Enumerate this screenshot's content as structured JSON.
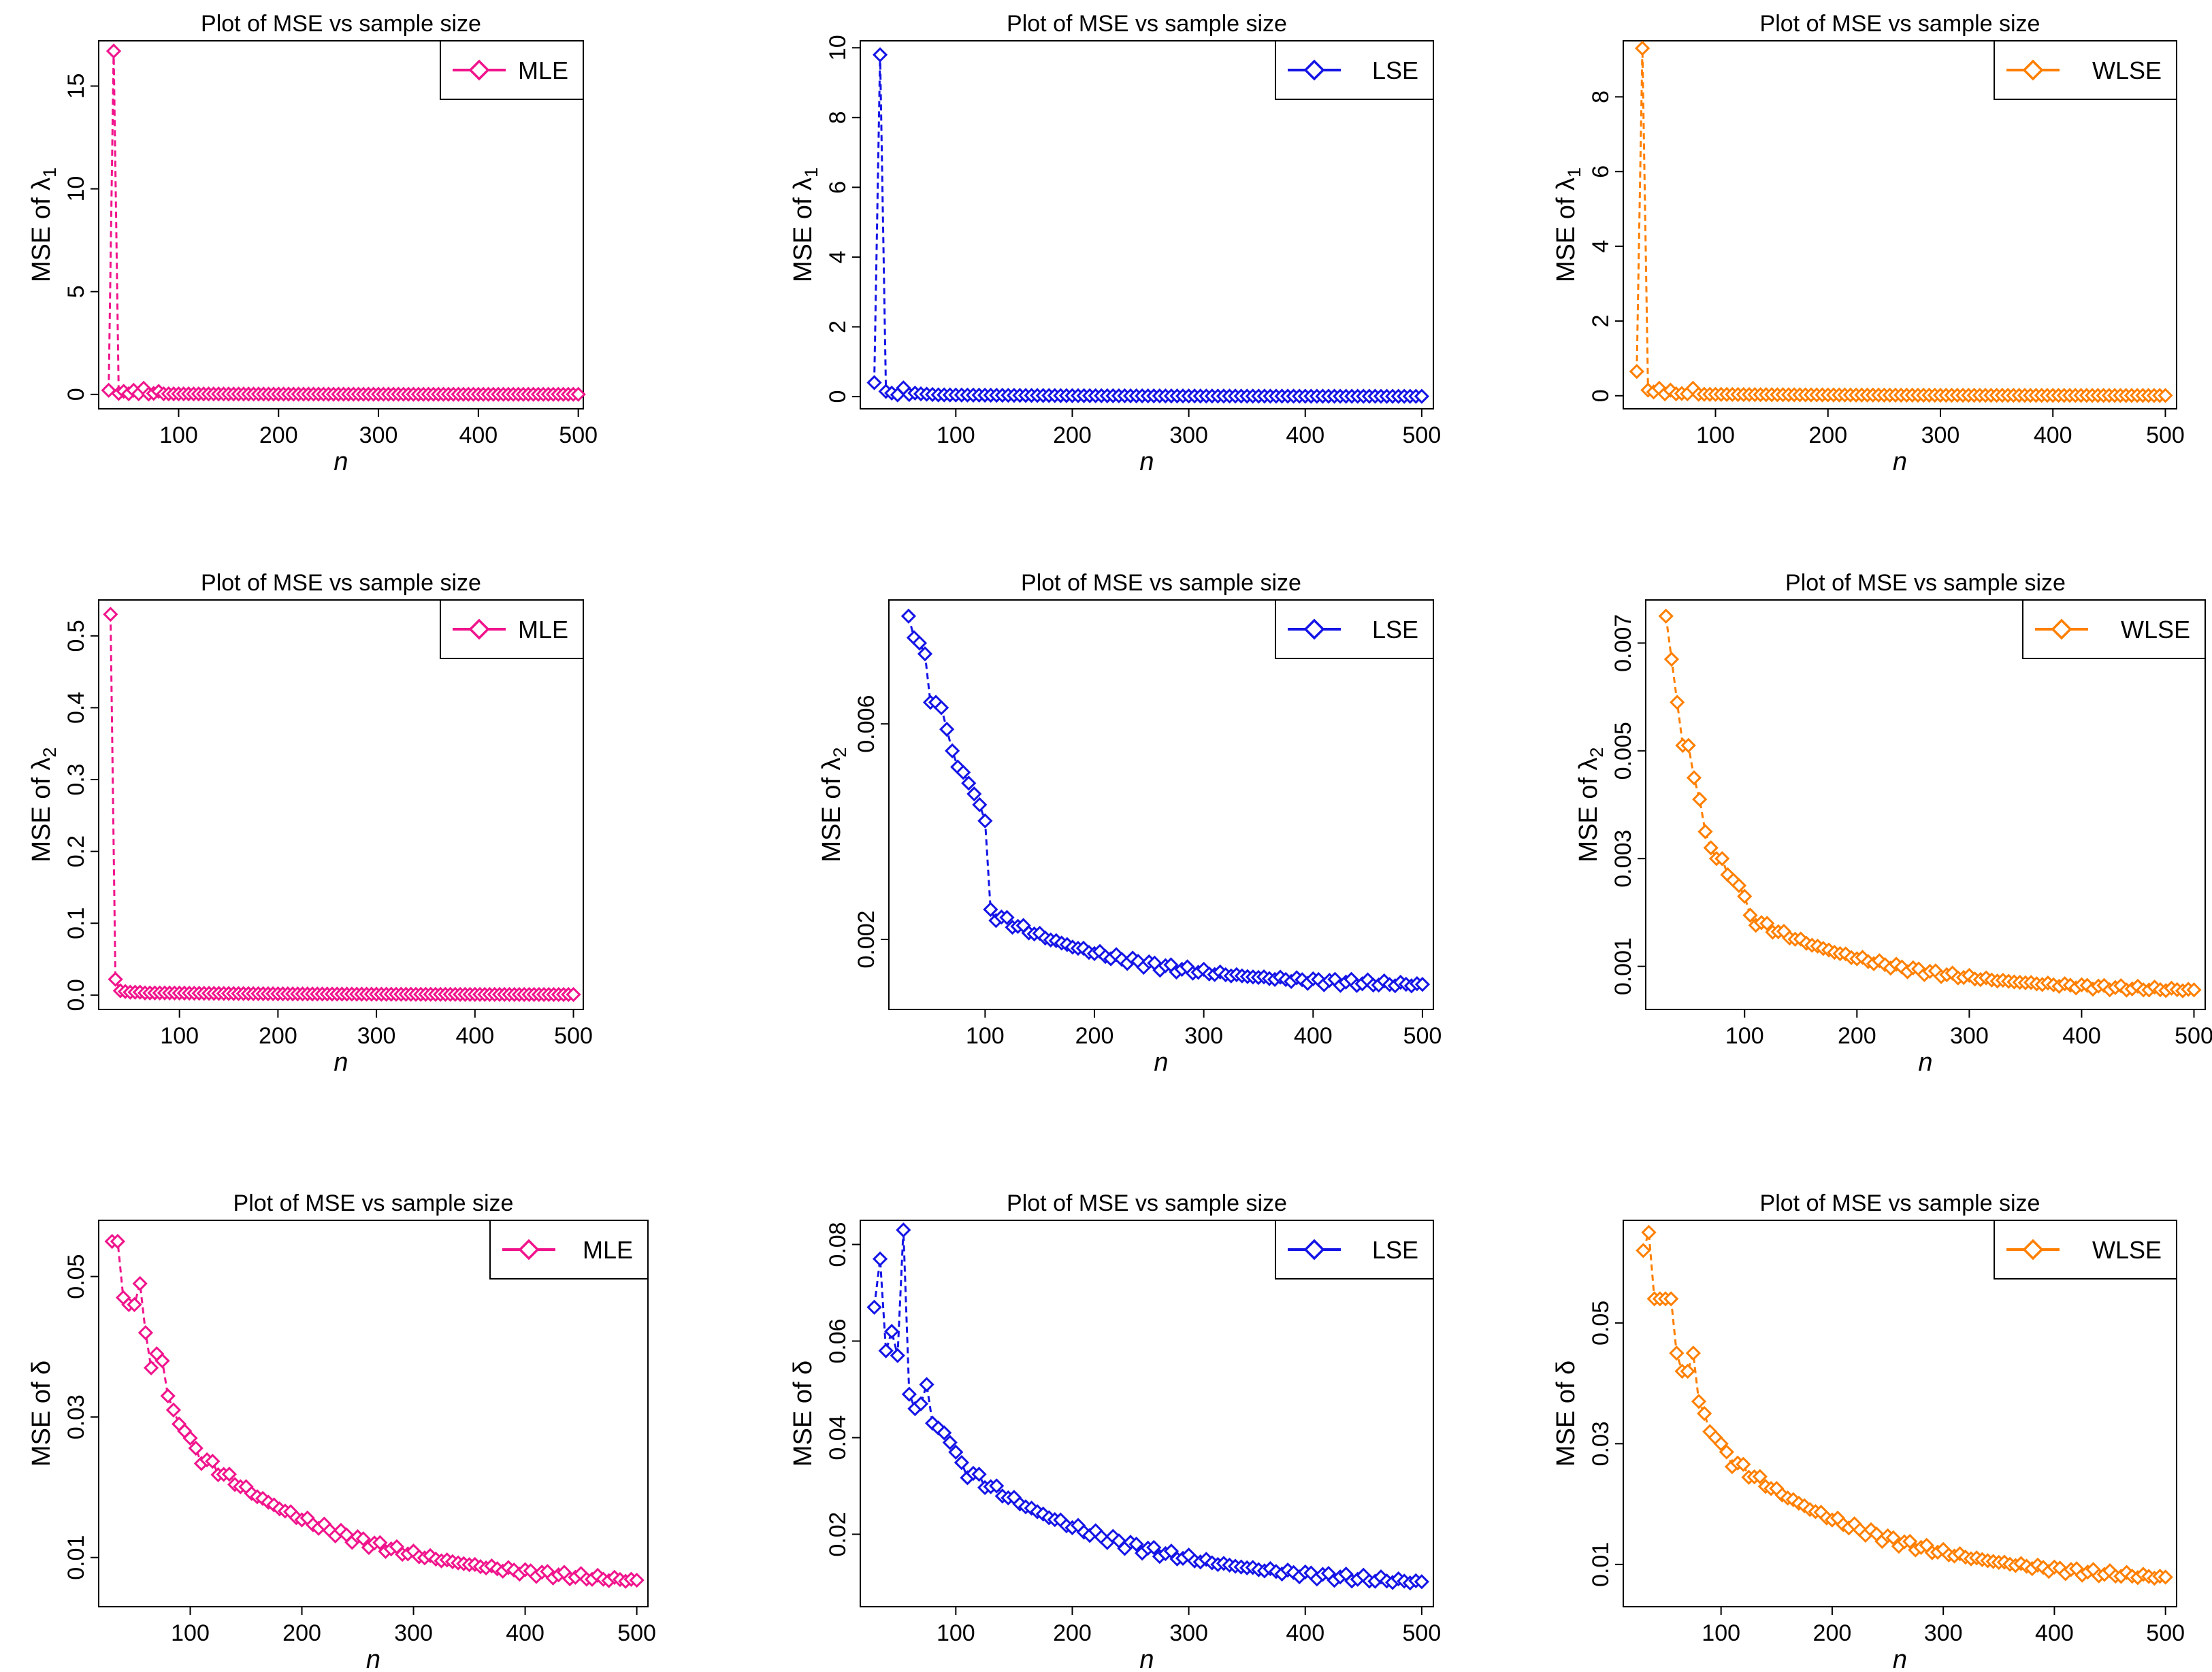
{
  "page_title": "Plot of MSE vs sample size",
  "colors": {
    "MLE": "#f0148c",
    "LSE": "#1414e6",
    "WLSE": "#ff7f00"
  },
  "chart_data": [
    {
      "type": "line",
      "title": "Plot of MSE vs sample size",
      "xlabel": "n",
      "ylabel_prefix": "MSE of ",
      "ylabel_sym": "λ",
      "ylabel_sub": "1",
      "legend": "MLE",
      "legend_position": "top-right",
      "color_key": "MLE",
      "xlim": [
        20,
        505
      ],
      "ylim": [
        -0.7,
        17.2
      ],
      "xticks": [
        100,
        200,
        300,
        400,
        500
      ],
      "xtick_labels": [
        "100",
        "200",
        "300",
        "400",
        "500"
      ],
      "yticks": [
        0,
        5,
        10,
        15
      ],
      "ytick_labels": [
        "0",
        "5",
        "10",
        "15"
      ],
      "x": [
        30,
        35,
        40,
        45,
        50,
        55,
        60,
        65,
        70,
        75,
        80
      ],
      "values": [
        0.2,
        16.7,
        0.05,
        0.15,
        0.03,
        0.2,
        0.03,
        0.3,
        0.02,
        0.05,
        0.15
      ],
      "tail_from": 85,
      "tail_to": 500,
      "tail_step": 5,
      "tail_start": 0.03,
      "tail_end": 0.003,
      "tail_decay": 0.006,
      "tail_noise": 0.0
    },
    {
      "type": "line",
      "title": "Plot of MSE vs sample size",
      "xlabel": "n",
      "ylabel_prefix": "MSE of ",
      "ylabel_sym": "λ",
      "ylabel_sub": "1",
      "legend": "LSE",
      "legend_position": "top-right",
      "color_key": "LSE",
      "xlim": [
        18,
        510
      ],
      "ylim": [
        -0.35,
        10.2
      ],
      "xticks": [
        100,
        200,
        300,
        400,
        500
      ],
      "xtick_labels": [
        "100",
        "200",
        "300",
        "400",
        "500"
      ],
      "yticks": [
        0,
        2,
        4,
        6,
        8,
        10
      ],
      "ytick_labels": [
        "0",
        "2",
        "4",
        "6",
        "8",
        "10"
      ],
      "x": [
        30,
        35,
        40,
        45,
        50,
        55,
        60,
        65,
        70,
        75,
        80
      ],
      "values": [
        0.4,
        9.8,
        0.15,
        0.1,
        0.05,
        0.25,
        0.06,
        0.1,
        0.08,
        0.07,
        0.06
      ],
      "tail_from": 85,
      "tail_to": 500,
      "tail_step": 5,
      "tail_start": 0.05,
      "tail_end": 0.005,
      "tail_decay": 0.006,
      "tail_noise": 0.0
    },
    {
      "type": "line",
      "title": "Plot of MSE vs sample size",
      "xlabel": "n",
      "ylabel_prefix": "MSE of ",
      "ylabel_sym": "λ",
      "ylabel_sub": "1",
      "legend": "WLSE",
      "legend_position": "top-right",
      "color_key": "WLSE",
      "xlim": [
        18,
        510
      ],
      "ylim": [
        -0.35,
        9.5
      ],
      "xticks": [
        100,
        200,
        300,
        400,
        500
      ],
      "xtick_labels": [
        "100",
        "200",
        "300",
        "400",
        "500"
      ],
      "yticks": [
        0,
        2,
        4,
        6,
        8
      ],
      "ytick_labels": [
        "0",
        "2",
        "4",
        "6",
        "8"
      ],
      "x": [
        30,
        35,
        40,
        45,
        50,
        55,
        60,
        65,
        70,
        75,
        80
      ],
      "values": [
        0.65,
        9.3,
        0.15,
        0.1,
        0.2,
        0.05,
        0.15,
        0.05,
        0.06,
        0.05,
        0.2
      ],
      "tail_from": 85,
      "tail_to": 500,
      "tail_step": 5,
      "tail_start": 0.04,
      "tail_end": 0.004,
      "tail_decay": 0.006,
      "tail_noise": 0.0
    },
    {
      "type": "line",
      "title": "Plot of MSE vs sample size",
      "xlabel": "n",
      "ylabel_prefix": "MSE of ",
      "ylabel_sym": "λ",
      "ylabel_sub": "2",
      "legend": "MLE",
      "legend_position": "top-right",
      "color_key": "MLE",
      "xlim": [
        18,
        510
      ],
      "ylim": [
        -0.02,
        0.55
      ],
      "xticks": [
        100,
        200,
        300,
        400,
        500
      ],
      "xtick_labels": [
        "100",
        "200",
        "300",
        "400",
        "500"
      ],
      "yticks": [
        0,
        0.1,
        0.2,
        0.3,
        0.4,
        0.5
      ],
      "ytick_labels": [
        "0.0",
        "0.1",
        "0.2",
        "0.3",
        "0.4",
        "0.5"
      ],
      "x": [
        30,
        35,
        40,
        45,
        50,
        55,
        60,
        65,
        70,
        75,
        80
      ],
      "values": [
        0.53,
        0.022,
        0.006,
        0.005,
        0.004,
        0.004,
        0.004,
        0.003,
        0.003,
        0.003,
        0.003
      ],
      "tail_from": 85,
      "tail_to": 500,
      "tail_step": 5,
      "tail_start": 0.003,
      "tail_end": 0.0006,
      "tail_decay": 0.006,
      "tail_noise": 0.0
    },
    {
      "type": "line",
      "title": "Plot of MSE vs sample size",
      "xlabel": "n",
      "ylabel_prefix": "MSE of ",
      "ylabel_sym": "λ",
      "ylabel_sub": "2",
      "legend": "LSE",
      "legend_position": "top-right",
      "color_key": "LSE",
      "xlim": [
        12,
        510
      ],
      "ylim": [
        0.0007,
        0.0083
      ],
      "xticks": [
        100,
        200,
        300,
        400,
        500
      ],
      "xtick_labels": [
        "100",
        "200",
        "300",
        "400",
        "500"
      ],
      "yticks": [
        0.002,
        0.006
      ],
      "ytick_labels": [
        "0.002",
        "0.006"
      ],
      "x": [
        30,
        35,
        40,
        45,
        50,
        55,
        60,
        65,
        70,
        75,
        80,
        85,
        90,
        95,
        100
      ],
      "values": [
        0.008,
        0.0076,
        0.0075,
        0.0073,
        0.0064,
        0.0064,
        0.0063,
        0.0059,
        0.0055,
        0.0052,
        0.0051,
        0.0049,
        0.0047,
        0.0045,
        0.0042
      ],
      "tail_from": 105,
      "tail_to": 500,
      "tail_step": 5,
      "tail_start": 0.0025,
      "tail_end": 0.0011,
      "tail_decay": 0.008,
      "tail_noise": 8e-05
    },
    {
      "type": "line",
      "title": "Plot of MSE vs sample size",
      "xlabel": "n",
      "ylabel_prefix": "MSE of ",
      "ylabel_sym": "λ",
      "ylabel_sub": "2",
      "legend": "WLSE",
      "legend_position": "top-right",
      "color_key": "WLSE",
      "xlim": [
        12,
        510
      ],
      "ylim": [
        0.0002,
        0.0078
      ],
      "xticks": [
        100,
        200,
        300,
        400,
        500
      ],
      "xtick_labels": [
        "100",
        "200",
        "300",
        "400",
        "500"
      ],
      "yticks": [
        0.001,
        0.003,
        0.005,
        0.007
      ],
      "ytick_labels": [
        "0.001",
        "0.003",
        "0.005",
        "0.007"
      ],
      "x": [
        30,
        35,
        40,
        45,
        50,
        55,
        60,
        65,
        70,
        75,
        80,
        85,
        90,
        95,
        100
      ],
      "values": [
        0.0075,
        0.0067,
        0.0059,
        0.0051,
        0.0051,
        0.0045,
        0.0041,
        0.0035,
        0.0032,
        0.003,
        0.003,
        0.0027,
        0.0026,
        0.0025,
        0.0023
      ],
      "tail_from": 105,
      "tail_to": 500,
      "tail_step": 5,
      "tail_start": 0.0019,
      "tail_end": 0.0005,
      "tail_decay": 0.008,
      "tail_noise": 7e-05
    },
    {
      "type": "line",
      "title": "Plot of MSE vs sample size",
      "xlabel": "n",
      "ylabel_prefix": "MSE of ",
      "ylabel_sym": "δ",
      "ylabel_sub": "",
      "legend": "MLE",
      "legend_position": "top-right",
      "color_key": "MLE",
      "xlim": [
        18,
        510
      ],
      "ylim": [
        0.003,
        0.058
      ],
      "xticks": [
        100,
        200,
        300,
        400,
        500
      ],
      "xtick_labels": [
        "100",
        "200",
        "300",
        "400",
        "500"
      ],
      "yticks": [
        0.01,
        0.03,
        0.05
      ],
      "ytick_labels": [
        "0.01",
        "0.03",
        "0.05"
      ],
      "x": [
        30,
        35,
        40,
        45,
        50,
        55,
        60,
        65,
        70,
        75,
        80,
        85,
        90,
        95,
        100
      ],
      "values": [
        0.055,
        0.055,
        0.047,
        0.046,
        0.046,
        0.049,
        0.042,
        0.037,
        0.039,
        0.038,
        0.033,
        0.031,
        0.029,
        0.028,
        0.027
      ],
      "tail_from": 105,
      "tail_to": 500,
      "tail_step": 5,
      "tail_start": 0.025,
      "tail_end": 0.0055,
      "tail_decay": 0.007,
      "tail_noise": 0.0008
    },
    {
      "type": "line",
      "title": "Plot of MSE vs sample size",
      "xlabel": "n",
      "ylabel_prefix": "MSE of ",
      "ylabel_sym": "δ",
      "ylabel_sub": "",
      "legend": "LSE",
      "legend_position": "top-right",
      "color_key": "LSE",
      "xlim": [
        18,
        510
      ],
      "ylim": [
        0.005,
        0.085
      ],
      "xticks": [
        100,
        200,
        300,
        400,
        500
      ],
      "xtick_labels": [
        "100",
        "200",
        "300",
        "400",
        "500"
      ],
      "yticks": [
        0.02,
        0.04,
        0.06,
        0.08
      ],
      "ytick_labels": [
        "0.02",
        "0.04",
        "0.06",
        "0.08"
      ],
      "x": [
        30,
        35,
        40,
        45,
        50,
        55,
        60,
        65,
        70,
        75,
        80,
        85,
        90,
        95,
        100
      ],
      "values": [
        0.067,
        0.077,
        0.058,
        0.062,
        0.057,
        0.083,
        0.049,
        0.046,
        0.047,
        0.051,
        0.043,
        0.042,
        0.041,
        0.039,
        0.037
      ],
      "tail_from": 105,
      "tail_to": 500,
      "tail_step": 5,
      "tail_start": 0.034,
      "tail_end": 0.0085,
      "tail_decay": 0.007,
      "tail_noise": 0.0012
    },
    {
      "type": "line",
      "title": "Plot of MSE vs sample size",
      "xlabel": "n",
      "ylabel_prefix": "MSE of ",
      "ylabel_sym": "δ",
      "ylabel_sub": "",
      "legend": "WLSE",
      "legend_position": "top-right",
      "color_key": "WLSE",
      "xlim": [
        12,
        510
      ],
      "ylim": [
        0.003,
        0.067
      ],
      "xticks": [
        100,
        200,
        300,
        400,
        500
      ],
      "xtick_labels": [
        "100",
        "200",
        "300",
        "400",
        "500"
      ],
      "yticks": [
        0.01,
        0.03,
        0.05
      ],
      "ytick_labels": [
        "0.01",
        "0.03",
        "0.05"
      ],
      "x": [
        30,
        35,
        40,
        45,
        50,
        55,
        60,
        65,
        70,
        75,
        80,
        85,
        90,
        95,
        100
      ],
      "values": [
        0.062,
        0.065,
        0.054,
        0.054,
        0.054,
        0.054,
        0.045,
        0.042,
        0.042,
        0.045,
        0.037,
        0.035,
        0.032,
        0.031,
        0.03
      ],
      "tail_from": 105,
      "tail_to": 500,
      "tail_step": 5,
      "tail_start": 0.028,
      "tail_end": 0.0065,
      "tail_decay": 0.007,
      "tail_noise": 0.0009
    }
  ]
}
